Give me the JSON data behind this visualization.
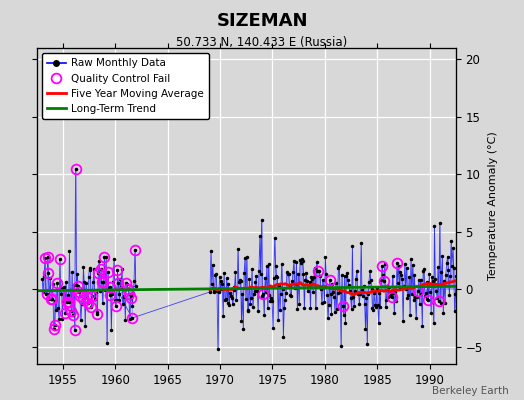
{
  "title": "SIZEMAN",
  "subtitle": "50.733 N, 140.433 E (Russia)",
  "ylabel": "Temperature Anomaly (°C)",
  "credit": "Berkeley Earth",
  "xlim": [
    1952.5,
    1992.5
  ],
  "ylim": [
    -6.5,
    21
  ],
  "yticks": [
    -5,
    0,
    5,
    10,
    15,
    20
  ],
  "xticks": [
    1955,
    1960,
    1965,
    1970,
    1975,
    1980,
    1985,
    1990
  ],
  "bg_color": "#d8d8d8",
  "grid_color": "white",
  "seed": 42
}
